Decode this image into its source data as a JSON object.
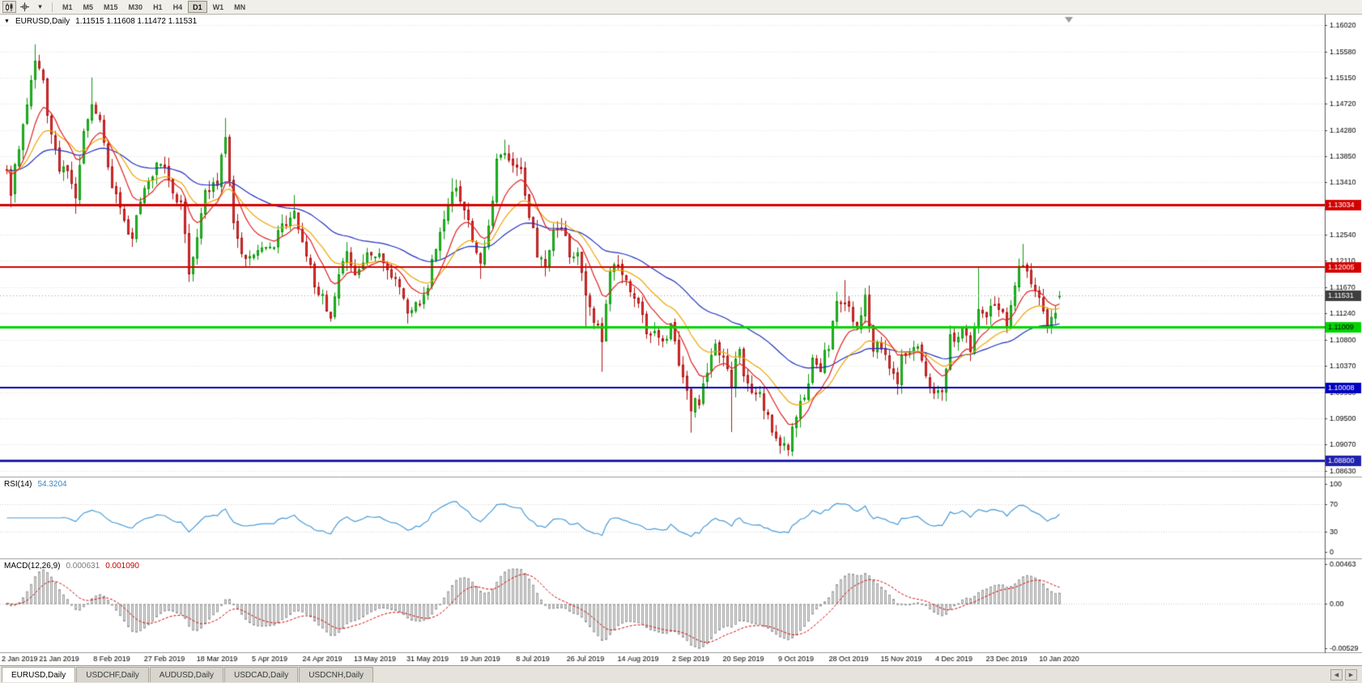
{
  "toolbar": {
    "timeframes": [
      "M1",
      "M5",
      "M15",
      "M30",
      "H1",
      "H4",
      "D1",
      "W1",
      "MN"
    ],
    "active_timeframe": "D1"
  },
  "icons": {
    "menu_caret": "▼",
    "toolbar_caret": "▾",
    "tab_scroll_left": "◀",
    "tab_scroll_right": "▶"
  },
  "chart": {
    "symbol_title": "EURUSD,Daily",
    "ohlc_text": "1.11515 1.11608 1.11472 1.11531"
  },
  "rsi_panel": {
    "label": "RSI(14)",
    "value": "54.3204"
  },
  "macd_panel": {
    "label": "MACD(12,26,9)",
    "value_main": "0.000631",
    "value_signal": "0.001090"
  },
  "tabs": {
    "items": [
      "EURUSD,Daily",
      "USDCHF,Daily",
      "AUDUSD,Daily",
      "USDCAD,Daily",
      "USDCNH,Daily"
    ],
    "active": "EURUSD,Daily"
  },
  "chart_data": {
    "type": "candlestick",
    "symbol": "EURUSD",
    "timeframe": "Daily",
    "bars": 261,
    "ylim": [
      1.0853,
      1.16194
    ],
    "y_ticks": [
      1.1602,
      1.1558,
      1.1515,
      1.1472,
      1.1428,
      1.1385,
      1.1341,
      1.1298,
      1.1254,
      1.1211,
      1.1167,
      1.1124,
      1.108,
      1.1037,
      1.0993,
      1.095,
      1.0907,
      1.0863
    ],
    "x_label_step": 13,
    "x_labels": [
      "2 Jan 2019",
      "21 Jan 2019",
      "8 Feb 2019",
      "27 Feb 2019",
      "18 Mar 2019",
      "5 Apr 2019",
      "24 Apr 2019",
      "13 May 2019",
      "31 May 2019",
      "19 Jun 2019",
      "8 Jul 2019",
      "26 Jul 2019",
      "14 Aug 2019",
      "2 Sep 2019",
      "20 Sep 2019",
      "9 Oct 2019",
      "28 Oct 2019",
      "15 Nov 2019",
      "4 Dec 2019",
      "23 Dec 2019",
      "10 Jan 2020"
    ],
    "last_candle": {
      "open": 1.11515,
      "high": 1.11608,
      "low": 1.11472,
      "close": 1.11531
    },
    "current_price": 1.11531,
    "close_waypoints": [
      [
        0,
        1.1355
      ],
      [
        1,
        1.132
      ],
      [
        3,
        1.14
      ],
      [
        5,
        1.1475
      ],
      [
        7,
        1.1545
      ],
      [
        9,
        1.15
      ],
      [
        11,
        1.1415
      ],
      [
        13,
        1.1365
      ],
      [
        15,
        1.1355
      ],
      [
        17,
        1.131
      ],
      [
        19,
        1.143
      ],
      [
        21,
        1.148
      ],
      [
        23,
        1.144
      ],
      [
        26,
        1.133
      ],
      [
        29,
        1.128
      ],
      [
        31,
        1.125
      ],
      [
        34,
        1.133
      ],
      [
        37,
        1.137
      ],
      [
        39,
        1.1365
      ],
      [
        41,
        1.132
      ],
      [
        43,
        1.1305
      ],
      [
        45,
        1.119
      ],
      [
        47,
        1.124
      ],
      [
        49,
        1.133
      ],
      [
        52,
        1.1345
      ],
      [
        54,
        1.141
      ],
      [
        56,
        1.128
      ],
      [
        58,
        1.123
      ],
      [
        60,
        1.122
      ],
      [
        63,
        1.123
      ],
      [
        65,
        1.1225
      ],
      [
        68,
        1.1265
      ],
      [
        71,
        1.1285
      ],
      [
        74,
        1.122
      ],
      [
        77,
        1.1155
      ],
      [
        78,
        1.115
      ],
      [
        80,
        1.112
      ],
      [
        82,
        1.118
      ],
      [
        84,
        1.122
      ],
      [
        86,
        1.118
      ],
      [
        88,
        1.121
      ],
      [
        91,
        1.1225
      ],
      [
        94,
        1.12
      ],
      [
        97,
        1.116
      ],
      [
        99,
        1.113
      ],
      [
        102,
        1.114
      ],
      [
        104,
        1.117
      ],
      [
        106,
        1.124
      ],
      [
        108,
        1.128
      ],
      [
        110,
        1.133
      ],
      [
        112,
        1.1315
      ],
      [
        114,
        1.128
      ],
      [
        116,
        1.122
      ],
      [
        117,
        1.121
      ],
      [
        119,
        1.127
      ],
      [
        121,
        1.137
      ],
      [
        123,
        1.139
      ],
      [
        125,
        1.137
      ],
      [
        127,
        1.1365
      ],
      [
        129,
        1.129
      ],
      [
        131,
        1.1225
      ],
      [
        133,
        1.121
      ],
      [
        135,
        1.1265
      ],
      [
        137,
        1.127
      ],
      [
        139,
        1.1225
      ],
      [
        141,
        1.1215
      ],
      [
        143,
        1.115
      ],
      [
        145,
        1.1115
      ],
      [
        147,
        1.108
      ],
      [
        149,
        1.12
      ],
      [
        151,
        1.12
      ],
      [
        153,
        1.117
      ],
      [
        156,
        1.114
      ],
      [
        158,
        1.11
      ],
      [
        160,
        1.109
      ],
      [
        162,
        1.108
      ],
      [
        164,
        1.11
      ],
      [
        166,
        1.104
      ],
      [
        168,
        1.099
      ],
      [
        169,
        1.097
      ],
      [
        171,
        1.098
      ],
      [
        173,
        1.103
      ],
      [
        175,
        1.107
      ],
      [
        177,
        1.104
      ],
      [
        179,
        1.101
      ],
      [
        181,
        1.107
      ],
      [
        182,
        1.102
      ],
      [
        184,
        1.1
      ],
      [
        186,
        1.099
      ],
      [
        188,
        1.095
      ],
      [
        190,
        1.092
      ],
      [
        192,
        1.09
      ],
      [
        193,
        1.0895
      ],
      [
        195,
        1.096
      ],
      [
        197,
        1.0985
      ],
      [
        199,
        1.104
      ],
      [
        201,
        1.1035
      ],
      [
        203,
        1.107
      ],
      [
        205,
        1.114
      ],
      [
        207,
        1.115
      ],
      [
        208,
        1.113
      ],
      [
        210,
        1.111
      ],
      [
        212,
        1.115
      ],
      [
        214,
        1.107
      ],
      [
        216,
        1.1075
      ],
      [
        218,
        1.103
      ],
      [
        220,
        1.1
      ],
      [
        221,
        1.105
      ],
      [
        223,
        1.106
      ],
      [
        225,
        1.107
      ],
      [
        227,
        1.101
      ],
      [
        229,
        1.1
      ],
      [
        231,
        1.0985
      ],
      [
        233,
        1.108
      ],
      [
        234,
        1.108
      ],
      [
        236,
        1.11
      ],
      [
        238,
        1.106
      ],
      [
        240,
        1.113
      ],
      [
        242,
        1.112
      ],
      [
        244,
        1.114
      ],
      [
        246,
        1.112
      ],
      [
        247,
        1.109
      ],
      [
        249,
        1.1175
      ],
      [
        251,
        1.121
      ],
      [
        253,
        1.117
      ],
      [
        255,
        1.116
      ],
      [
        257,
        1.1105
      ],
      [
        259,
        1.1125
      ],
      [
        260,
        1.11531
      ]
    ],
    "wick_events": [
      [
        1,
        null,
        1.13
      ],
      [
        7,
        1.157,
        null
      ],
      [
        17,
        null,
        1.1289
      ],
      [
        21,
        1.1515,
        null
      ],
      [
        31,
        null,
        1.1234
      ],
      [
        45,
        null,
        1.1176
      ],
      [
        54,
        1.1448,
        null
      ],
      [
        60,
        null,
        1.1214
      ],
      [
        71,
        1.132,
        null
      ],
      [
        80,
        null,
        1.111
      ],
      [
        99,
        null,
        1.1107
      ],
      [
        110,
        1.1348,
        null
      ],
      [
        117,
        null,
        1.1181
      ],
      [
        123,
        1.1412,
        null
      ],
      [
        143,
        null,
        1.1101
      ],
      [
        147,
        null,
        1.1027
      ],
      [
        169,
        null,
        1.0926
      ],
      [
        179,
        null,
        1.0927
      ],
      [
        193,
        null,
        1.0897
      ],
      [
        207,
        1.1179,
        null
      ],
      [
        220,
        null,
        1.0989
      ],
      [
        231,
        null,
        1.0981
      ],
      [
        240,
        1.12,
        null
      ],
      [
        251,
        1.1239,
        null
      ]
    ],
    "horizontal_lines": [
      {
        "price": 1.13034,
        "color": "#d40000",
        "width": 3,
        "text": "#ffffff"
      },
      {
        "price": 1.12005,
        "color": "#d40000",
        "width": 2,
        "text": "#ffffff"
      },
      {
        "price": 1.11009,
        "color": "#00d400",
        "width": 3,
        "text": "#000000"
      },
      {
        "price": 1.10008,
        "color": "#0000c0",
        "width": 2,
        "text": "#ffffff"
      },
      {
        "price": 1.088,
        "color": "#2020b0",
        "width": 3,
        "text": "#ffffff"
      }
    ],
    "bid_label": {
      "box": "#3e3e3e",
      "text": "#ffffff",
      "line": "#a0a0a0"
    },
    "moving_averages": [
      {
        "period": 50,
        "color": "#2030c0"
      },
      {
        "period": 21,
        "color": "#efa500"
      },
      {
        "period": 10,
        "color": "#e02020"
      }
    ],
    "rsi": {
      "period": 14,
      "last": 54.3204,
      "levels": [
        100,
        70,
        30,
        0
      ],
      "line_color": "#4a9bd8",
      "level_lines": [
        70,
        30
      ]
    },
    "macd": {
      "fast": 12,
      "slow": 26,
      "signal": 9,
      "axis_labels": [
        "0.00463",
        "0.00",
        "-0.00529"
      ],
      "range": [
        -0.00529,
        0.00463
      ],
      "hist_fill": "#e4e4e4",
      "hist_stroke": "#a0a0a0",
      "signal_color": "#d40000"
    },
    "colors": {
      "up_border": "#0e9a0e",
      "up_fill": "#2fbf2f",
      "down_border": "#b01515",
      "down_fill": "#e23a3a",
      "grid": "#dcdcdc",
      "axis_text": "#000000"
    }
  }
}
